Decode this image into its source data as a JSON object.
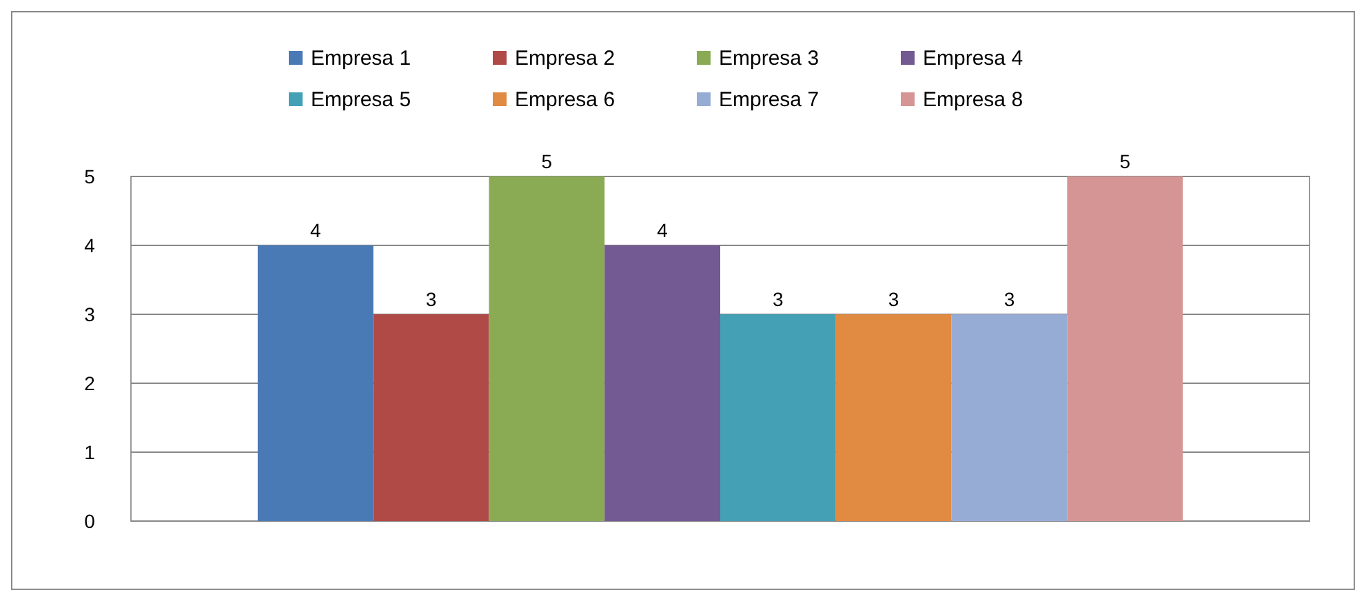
{
  "chart_data": {
    "type": "bar",
    "categories": [
      null
    ],
    "series": [
      {
        "name": "Empresa 1",
        "color": "#4a7ab5",
        "values": [
          4
        ]
      },
      {
        "name": "Empresa 2",
        "color": "#b04a47",
        "values": [
          3
        ]
      },
      {
        "name": "Empresa 3",
        "color": "#8aab54",
        "values": [
          5
        ]
      },
      {
        "name": "Empresa 4",
        "color": "#735a92",
        "values": [
          4
        ]
      },
      {
        "name": "Empresa 5",
        "color": "#44a0b5",
        "values": [
          3
        ]
      },
      {
        "name": "Empresa 6",
        "color": "#e08a42",
        "values": [
          3
        ]
      },
      {
        "name": "Empresa 7",
        "color": "#97acd4",
        "values": [
          3
        ]
      },
      {
        "name": "Empresa 8",
        "color": "#d59594",
        "values": [
          5
        ]
      }
    ],
    "ylim": [
      0,
      5
    ],
    "yticks": [
      0,
      1,
      2,
      3,
      4,
      5
    ],
    "grid": "y",
    "legend": "top",
    "data_labels": true
  }
}
